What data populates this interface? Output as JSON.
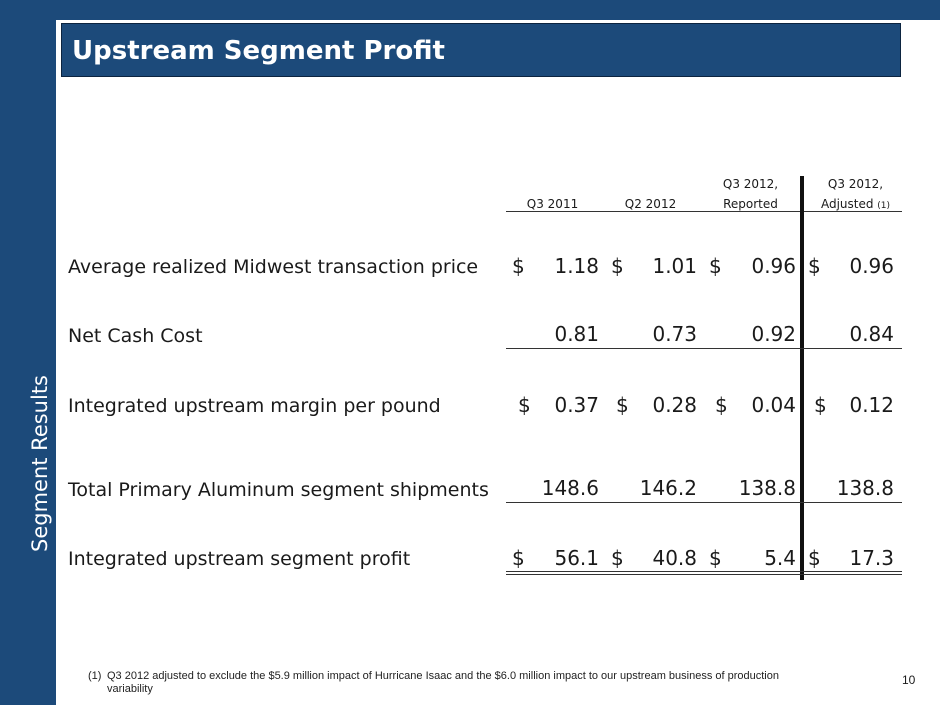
{
  "sidebar": {
    "label": "Segment Results"
  },
  "title": "Upstream Segment Profit",
  "columns": [
    {
      "line1": "",
      "line2": "Q3 2011",
      "sup": ""
    },
    {
      "line1": "",
      "line2": "Q2 2012",
      "sup": ""
    },
    {
      "line1": "Q3 2012,",
      "line2": "Reported",
      "sup": ""
    },
    {
      "line1": "Q3 2012,",
      "line2": "Adjusted",
      "sup": "(1)"
    }
  ],
  "rows": [
    {
      "label": "Average realized Midwest transaction price",
      "dollar": "$",
      "values": [
        "1.18",
        "1.01",
        "0.96",
        "0.96"
      ]
    },
    {
      "label": "Net Cash Cost",
      "dollar": "",
      "values": [
        "0.81",
        "0.73",
        "0.92",
        "0.84"
      ]
    },
    {
      "label": "Integrated upstream margin per pound",
      "dollar": "$",
      "values": [
        "0.37",
        "0.28",
        "0.04",
        "0.12"
      ]
    },
    {
      "label": "Total Primary Aluminum segment shipments",
      "dollar": "",
      "values": [
        "148.6",
        "146.2",
        "138.8",
        "138.8"
      ]
    },
    {
      "label": "Integrated upstream segment profit",
      "dollar": "$",
      "values": [
        "56.1",
        "40.8",
        "5.4",
        "17.3"
      ]
    }
  ],
  "footnote": {
    "number": "(1)",
    "text": "Q3 2012 adjusted to exclude the $5.9 million impact of Hurricane Isaac and the $6.0 million impact  to our upstream business of production variability"
  },
  "page_number": "10",
  "colors": {
    "brand": "#1c4a7a"
  }
}
